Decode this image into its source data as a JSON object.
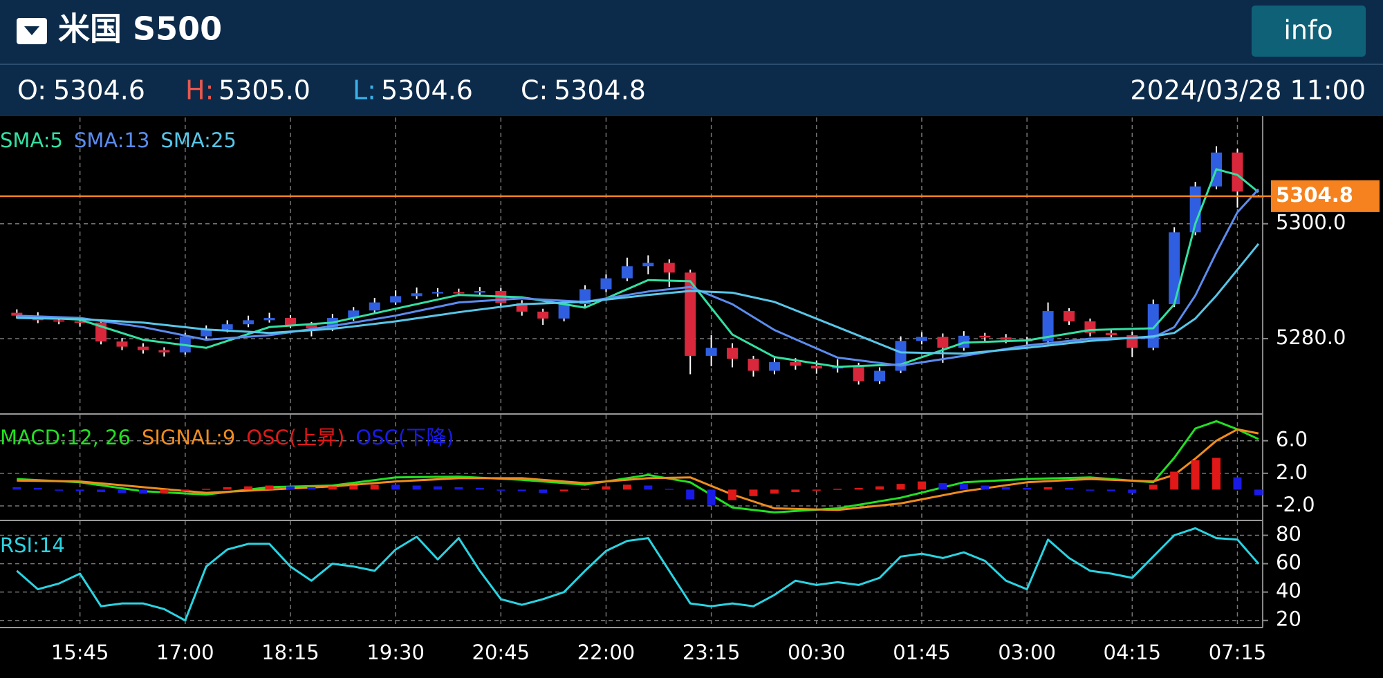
{
  "header": {
    "title": "米国 S500",
    "button": "info",
    "ohlc": [
      {
        "label": "O:",
        "value": "5304.6"
      },
      {
        "label": "H:",
        "value": "5305.0"
      },
      {
        "label": "L:",
        "value": "5304.6"
      },
      {
        "label": "C:",
        "value": "5304.8"
      }
    ],
    "datetime": "2024/03/28 11:00"
  },
  "chart_data": [
    {
      "type": "candlestick",
      "xlim": [
        -0.8,
        59.2
      ],
      "xticks": [
        {
          "value": 3,
          "label": "15:45"
        },
        {
          "value": 8,
          "label": "17:00"
        },
        {
          "value": 13,
          "label": "18:15"
        },
        {
          "value": 18,
          "label": "19:30"
        },
        {
          "value": 23,
          "label": "20:45"
        },
        {
          "value": 28,
          "label": "22:00"
        },
        {
          "value": 33,
          "label": "23:15"
        },
        {
          "value": 38,
          "label": "00:30"
        },
        {
          "value": 43,
          "label": "01:45"
        },
        {
          "value": 48,
          "label": "03:00"
        },
        {
          "value": 53,
          "label": "04:15"
        },
        {
          "value": 58,
          "label": "07:15"
        }
      ],
      "ylim": [
        5267,
        5318.5
      ],
      "yticks": [
        {
          "value": 5300,
          "label": "5300.0"
        },
        {
          "value": 5280,
          "label": "5280.0"
        }
      ],
      "grid": true,
      "candles": {
        "up_color": "#2f5fe0",
        "down_color": "#d9283c",
        "open": [
          5284.5,
          5284.0,
          5283.2,
          5283.0,
          5282.8,
          5279.5,
          5278.6,
          5278.0,
          5277.6,
          5280.4,
          5281.6,
          5282.5,
          5283.2,
          5283.6,
          5282.4,
          5281.8,
          5283.6,
          5284.9,
          5286.3,
          5287.4,
          5287.9,
          5288.1,
          5288.0,
          5288.3,
          5286.2,
          5284.7,
          5283.5,
          5286.0,
          5288.6,
          5290.5,
          5292.6,
          5293.2,
          5291.5,
          5277.0,
          5278.4,
          5276.5,
          5274.4,
          5275.9,
          5275.3,
          5274.8,
          5275.2,
          5272.6,
          5274.4,
          5279.6,
          5280.3,
          5278.4,
          5280.5,
          5280.2,
          5279.8,
          5279.5,
          5284.8,
          5283.0,
          5281.0,
          5280.6,
          5278.4,
          5286.0,
          5298.5,
          5306.5,
          5312.4,
          5304.6
        ],
        "high": [
          5285.1,
          5284.6,
          5283.9,
          5283.6,
          5283.2,
          5280.1,
          5279.2,
          5278.5,
          5281.0,
          5282.3,
          5283.2,
          5284.0,
          5284.5,
          5284.1,
          5282.9,
          5284.3,
          5285.5,
          5287.1,
          5288.4,
          5288.9,
          5288.8,
          5288.7,
          5289.0,
          5288.8,
          5286.7,
          5285.2,
          5286.7,
          5289.3,
          5291.2,
          5294.1,
          5294.5,
          5293.8,
          5292.0,
          5280.6,
          5279.2,
          5277.0,
          5276.8,
          5276.6,
          5276.2,
          5276.4,
          5275.8,
          5275.0,
          5280.4,
          5281.1,
          5280.9,
          5281.3,
          5281.0,
          5280.8,
          5280.3,
          5286.3,
          5285.3,
          5283.5,
          5281.7,
          5281.2,
          5286.8,
          5299.4,
          5307.3,
          5313.5,
          5313.0,
          5305.0
        ],
        "low": [
          5283.5,
          5282.7,
          5282.5,
          5282.1,
          5279.0,
          5278.0,
          5277.4,
          5276.9,
          5277.2,
          5280.0,
          5281.1,
          5282.0,
          5282.8,
          5281.8,
          5280.4,
          5281.3,
          5283.1,
          5284.4,
          5285.9,
          5286.9,
          5287.3,
          5287.4,
          5287.5,
          5285.6,
          5284.0,
          5282.4,
          5283.0,
          5285.5,
          5288.1,
          5290.0,
          5291.2,
          5289.0,
          5273.8,
          5275.2,
          5275.0,
          5273.4,
          5273.8,
          5274.6,
          5273.9,
          5274.1,
          5272.0,
          5272.1,
          5274.0,
          5279.0,
          5275.8,
          5277.9,
          5279.5,
          5279.2,
          5278.9,
          5279.0,
          5282.4,
          5280.4,
          5279.9,
          5276.8,
          5278.0,
          5285.5,
          5298.0,
          5306.0,
          5302.8,
          5304.6
        ],
        "close": [
          5284.0,
          5283.2,
          5283.0,
          5282.8,
          5279.5,
          5278.6,
          5278.0,
          5277.6,
          5280.4,
          5281.6,
          5282.5,
          5283.2,
          5283.6,
          5282.4,
          5281.8,
          5283.6,
          5284.9,
          5286.3,
          5287.4,
          5287.9,
          5288.1,
          5288.0,
          5288.3,
          5286.2,
          5284.7,
          5283.5,
          5286.0,
          5288.6,
          5290.5,
          5292.6,
          5293.2,
          5291.5,
          5277.0,
          5278.4,
          5276.5,
          5274.4,
          5275.9,
          5275.3,
          5274.8,
          5275.2,
          5272.6,
          5274.4,
          5279.6,
          5280.3,
          5278.4,
          5280.5,
          5280.2,
          5279.8,
          5279.5,
          5284.8,
          5283.0,
          5281.0,
          5280.6,
          5278.4,
          5286.0,
          5298.5,
          5306.5,
          5312.4,
          5305.6,
          5304.8
        ]
      },
      "series": [
        {
          "name": "SMA:5",
          "color": "#33e0a2",
          "x": [
            0,
            3,
            6,
            9,
            12,
            15,
            18,
            21,
            24,
            27,
            30,
            32,
            34,
            36,
            39,
            42,
            45,
            48,
            51,
            54,
            55,
            56,
            57,
            58,
            59
          ],
          "values": [
            5283.9,
            5283.3,
            5279.8,
            5278.4,
            5282.0,
            5282.8,
            5285.2,
            5287.6,
            5287.2,
            5285.4,
            5290.2,
            5290.0,
            5280.7,
            5276.8,
            5275.1,
            5275.5,
            5279.3,
            5279.7,
            5281.5,
            5281.8,
            5286.0,
            5300.0,
            5309.5,
            5308.5,
            5305.5
          ]
        },
        {
          "name": "SMA:13",
          "color": "#5b8cef",
          "x": [
            0,
            3,
            6,
            9,
            12,
            15,
            18,
            21,
            24,
            27,
            30,
            32,
            34,
            36,
            39,
            42,
            45,
            48,
            51,
            54,
            55,
            56,
            57,
            58,
            59
          ],
          "values": [
            5284.0,
            5283.6,
            5282.0,
            5279.8,
            5280.6,
            5282.2,
            5284.0,
            5286.3,
            5287.0,
            5286.4,
            5288.2,
            5289.0,
            5286.0,
            5281.5,
            5276.7,
            5275.3,
            5277.0,
            5278.8,
            5280.0,
            5280.2,
            5282.0,
            5287.5,
            5295.0,
            5302.0,
            5306.0
          ]
        },
        {
          "name": "SMA:25",
          "color": "#58c6e8",
          "x": [
            0,
            3,
            6,
            9,
            12,
            15,
            18,
            21,
            24,
            27,
            30,
            32,
            34,
            36,
            39,
            42,
            45,
            48,
            51,
            54,
            55,
            56,
            57,
            58,
            59
          ],
          "values": [
            5283.6,
            5283.4,
            5282.8,
            5281.6,
            5281.0,
            5281.7,
            5283.0,
            5284.6,
            5286.0,
            5286.4,
            5287.6,
            5288.3,
            5288.0,
            5286.4,
            5282.0,
            5277.6,
            5277.4,
            5278.4,
            5279.6,
            5280.4,
            5281.0,
            5283.5,
            5287.5,
            5292.0,
            5296.5
          ]
        }
      ],
      "current_price": {
        "value": 5304.8,
        "label": "5304.8",
        "color": "#f5821f"
      }
    },
    {
      "type": "macd",
      "ylim": [
        -3.7,
        9.2
      ],
      "yticks": [
        {
          "value": 6,
          "label": "6.0"
        },
        {
          "value": 2,
          "label": "2.0"
        },
        {
          "value": -2,
          "label": "-2.0"
        }
      ],
      "grid": true,
      "series": [
        {
          "name": "MACD:12, 26",
          "color": "#22e022",
          "mark": "line",
          "x": [
            0,
            3,
            6,
            9,
            12,
            15,
            18,
            21,
            24,
            27,
            30,
            32,
            34,
            36,
            39,
            42,
            45,
            48,
            51,
            54,
            55,
            56,
            57,
            58,
            59
          ],
          "values": [
            1.3,
            0.9,
            -0.2,
            -0.6,
            0.3,
            0.5,
            1.5,
            1.6,
            1.2,
            0.6,
            1.8,
            0.9,
            -2.2,
            -2.8,
            -2.3,
            -1.0,
            0.9,
            1.3,
            1.5,
            0.9,
            3.9,
            7.5,
            8.4,
            7.4,
            6.2
          ]
        },
        {
          "name": "SIGNAL:9",
          "color": "#f08c1e",
          "mark": "line",
          "x": [
            0,
            3,
            6,
            9,
            12,
            15,
            18,
            21,
            24,
            27,
            30,
            32,
            34,
            36,
            39,
            42,
            45,
            48,
            51,
            54,
            55,
            56,
            57,
            58,
            59
          ],
          "values": [
            1.1,
            1.0,
            0.3,
            -0.4,
            0.0,
            0.4,
            1.0,
            1.4,
            1.4,
            0.8,
            1.4,
            1.5,
            -0.6,
            -2.3,
            -2.5,
            -1.7,
            -0.2,
            0.9,
            1.3,
            1.0,
            1.8,
            3.8,
            6.0,
            7.4,
            6.9
          ]
        },
        {
          "name": "OSC(上昇)",
          "color": "#e01818",
          "mark": "bar",
          "values": [
            null,
            null,
            null,
            null,
            null,
            null,
            null,
            -0.4,
            -0.2,
            0.1,
            0.3,
            0.4,
            0.5,
            null,
            null,
            0.4,
            0.5,
            0.6,
            null,
            null,
            null,
            null,
            null,
            null,
            null,
            null,
            -0.2,
            0.1,
            0.4,
            0.6,
            null,
            null,
            null,
            null,
            -1.3,
            -0.8,
            -0.5,
            -0.3,
            -0.1,
            0.1,
            0.2,
            0.4,
            0.7,
            1.0,
            null,
            null,
            null,
            null,
            null,
            0.3,
            null,
            null,
            null,
            null,
            0.6,
            2.2,
            3.6,
            3.9,
            null,
            null
          ]
        },
        {
          "name": "OSC(下降)",
          "color": "#1a1ae6",
          "mark": "bar",
          "values": [
            0.3,
            0.2,
            0.0,
            -0.2,
            -0.3,
            -0.4,
            -0.5,
            null,
            null,
            null,
            null,
            null,
            null,
            0.4,
            0.3,
            null,
            null,
            null,
            0.6,
            0.5,
            0.4,
            0.3,
            0.2,
            0.0,
            -0.2,
            -0.4,
            null,
            null,
            null,
            null,
            0.5,
            0.1,
            -1.2,
            -1.9,
            null,
            null,
            null,
            null,
            null,
            null,
            null,
            null,
            null,
            null,
            0.8,
            0.7,
            0.5,
            0.3,
            0.2,
            null,
            0.2,
            0.0,
            -0.2,
            -0.4,
            null,
            null,
            null,
            null,
            1.5,
            -0.7
          ]
        }
      ]
    },
    {
      "type": "line",
      "ylim": [
        15,
        90
      ],
      "yticks": [
        80,
        60,
        40,
        20
      ],
      "grid": true,
      "series": [
        {
          "name": "RSI:14",
          "color": "#2ad4e2",
          "values": [
            55,
            42,
            46,
            53,
            30,
            32,
            32,
            28,
            20,
            58,
            70,
            74,
            74,
            58,
            48,
            60,
            58,
            55,
            70,
            79,
            63,
            78,
            55,
            35,
            31,
            35,
            40,
            55,
            69,
            76,
            78,
            55,
            32,
            30,
            32,
            30,
            38,
            48,
            45,
            47,
            45,
            50,
            65,
            67,
            64,
            68,
            62,
            48,
            42,
            77,
            64,
            55,
            53,
            50,
            65,
            80,
            85,
            78,
            77,
            60
          ]
        }
      ]
    }
  ]
}
